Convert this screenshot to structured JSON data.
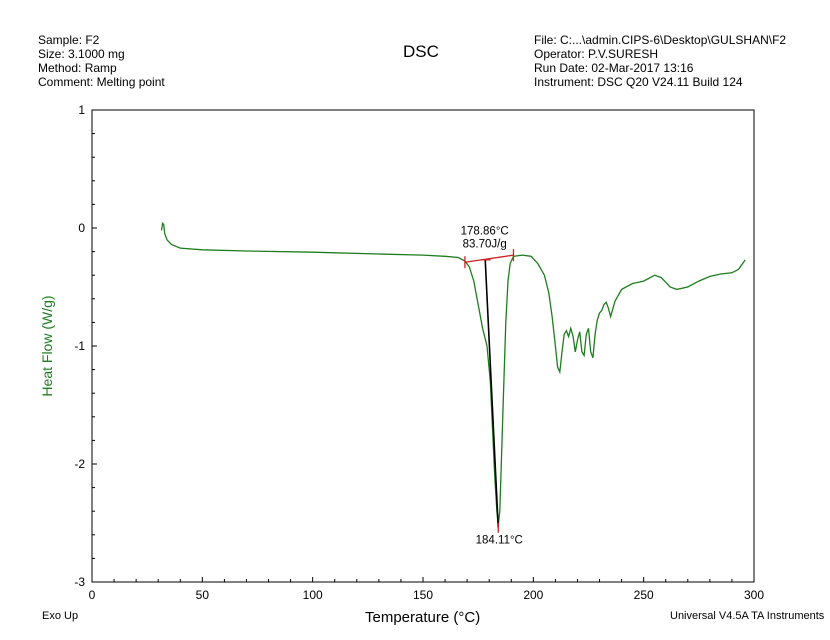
{
  "header": {
    "left": [
      "Sample: F2",
      "Size:  3.1000 mg",
      "Method: Ramp",
      "Comment: Melting point"
    ],
    "right": [
      "File: C:...\\admin.CIPS-6\\Desktop\\GULSHAN\\F2",
      "Operator: P.V.SURESH",
      "Run Date: 02-Mar-2017 13:16",
      "Instrument: DSC Q20 V24.11 Build 124"
    ]
  },
  "footer": {
    "left": "Exo Up",
    "right": "Universal V4.5A TA Instruments"
  },
  "colors": {
    "curve": "#1e7d1e",
    "ylabel": "#1e7d1e",
    "baseline": "#d22020",
    "tangent": "#000000",
    "axis": "#000000"
  },
  "chart_data": {
    "type": "line",
    "title": "DSC",
    "xlabel": "Temperature (°C)",
    "ylabel": "Heat Flow (W/g)",
    "xlim": [
      0,
      300
    ],
    "ylim": [
      -3,
      1
    ],
    "x_ticks": [
      0,
      50,
      100,
      150,
      200,
      250,
      300
    ],
    "y_ticks": [
      1,
      0,
      -1,
      -2,
      -3
    ],
    "grid": false,
    "series": [
      {
        "points": [
          [
            31.5,
            -0.02
          ],
          [
            32,
            0.04
          ],
          [
            32.5,
            0.03
          ],
          [
            33,
            -0.05
          ],
          [
            34,
            -0.1
          ],
          [
            36,
            -0.14
          ],
          [
            40,
            -0.17
          ],
          [
            50,
            -0.185
          ],
          [
            70,
            -0.195
          ],
          [
            100,
            -0.205
          ],
          [
            130,
            -0.22
          ],
          [
            150,
            -0.23
          ],
          [
            160,
            -0.24
          ],
          [
            166,
            -0.25
          ],
          [
            169,
            -0.28
          ],
          [
            171,
            -0.33
          ],
          [
            173,
            -0.45
          ],
          [
            175,
            -0.65
          ],
          [
            177,
            -0.85
          ],
          [
            179,
            -1.0
          ],
          [
            180.5,
            -1.3
          ],
          [
            181.5,
            -1.7
          ],
          [
            182.5,
            -2.1
          ],
          [
            183.5,
            -2.4
          ],
          [
            184.1,
            -2.52
          ],
          [
            184.8,
            -2.4
          ],
          [
            185.5,
            -2.0
          ],
          [
            186.5,
            -1.4
          ],
          [
            187.5,
            -0.8
          ],
          [
            188.5,
            -0.45
          ],
          [
            189.5,
            -0.3
          ],
          [
            191,
            -0.24
          ],
          [
            195,
            -0.23
          ],
          [
            199,
            -0.24
          ],
          [
            202,
            -0.3
          ],
          [
            205,
            -0.4
          ],
          [
            207,
            -0.55
          ],
          [
            208.5,
            -0.75
          ],
          [
            210,
            -1.0
          ],
          [
            211,
            -1.18
          ],
          [
            212,
            -1.22
          ],
          [
            213,
            -1.05
          ],
          [
            214,
            -0.9
          ],
          [
            215,
            -0.87
          ],
          [
            216,
            -0.92
          ],
          [
            217,
            -0.85
          ],
          [
            218,
            -0.92
          ],
          [
            219,
            -1.05
          ],
          [
            220,
            -0.95
          ],
          [
            221,
            -0.88
          ],
          [
            222,
            -1.05
          ],
          [
            223,
            -1.08
          ],
          [
            224,
            -0.9
          ],
          [
            225,
            -0.85
          ],
          [
            226,
            -1.05
          ],
          [
            227,
            -1.1
          ],
          [
            228,
            -0.9
          ],
          [
            229,
            -0.78
          ],
          [
            230,
            -0.72
          ],
          [
            231,
            -0.7
          ],
          [
            232,
            -0.65
          ],
          [
            233,
            -0.63
          ],
          [
            234,
            -0.68
          ],
          [
            235,
            -0.75
          ],
          [
            237,
            -0.62
          ],
          [
            240,
            -0.52
          ],
          [
            245,
            -0.47
          ],
          [
            250,
            -0.45
          ],
          [
            255,
            -0.4
          ],
          [
            258,
            -0.42
          ],
          [
            262,
            -0.5
          ],
          [
            265,
            -0.52
          ],
          [
            270,
            -0.5
          ],
          [
            275,
            -0.45
          ],
          [
            280,
            -0.41
          ],
          [
            285,
            -0.39
          ],
          [
            290,
            -0.38
          ],
          [
            293,
            -0.35
          ],
          [
            296,
            -0.27
          ]
        ]
      }
    ],
    "annotations": [
      {
        "text": "178.86°C",
        "x": 178.86,
        "y": -0.25
      },
      {
        "text": "83.70J/g",
        "x": 178.86,
        "y": -0.25
      },
      {
        "text": "184.11°C",
        "x": 184.11,
        "y": -2.54
      }
    ],
    "integration_baseline": [
      [
        169,
        -0.29
      ],
      [
        191,
        -0.23
      ]
    ],
    "peak_tangent": [
      [
        178.2,
        -0.27
      ],
      [
        184.1,
        -2.54
      ]
    ]
  }
}
